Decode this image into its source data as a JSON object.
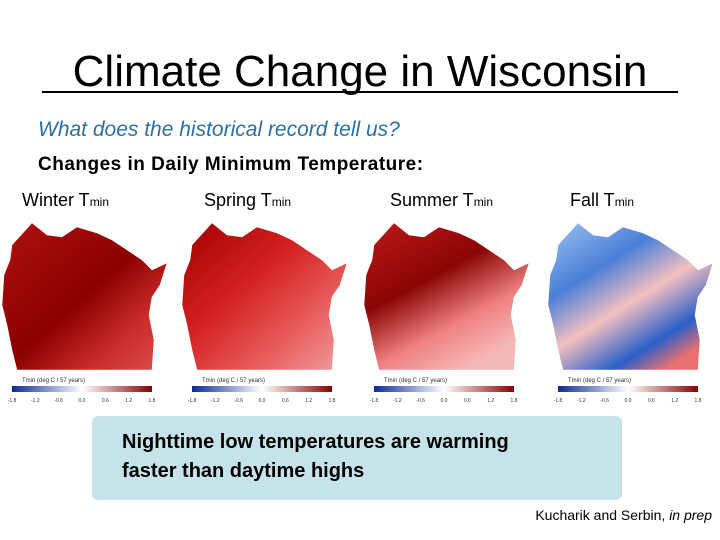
{
  "title": "Climate Change in Wisconsin",
  "subtitle": "What does the historical record tell us?",
  "heading": "Changes in Daily Minimum Temperature:",
  "maps": [
    {
      "season": "Winter T",
      "sub": "min",
      "legend_title": "Tmin (deg C / 57 years)",
      "legend_ticks": [
        "-1.8",
        "-1.2",
        "-0.6",
        "0.0",
        "0.6",
        "1.2",
        "1.8"
      ]
    },
    {
      "season": "Spring T",
      "sub": "min",
      "legend_title": "Tmin (deg C / 57 years)",
      "legend_ticks": [
        "-1.8",
        "-1.2",
        "-0.6",
        "0.0",
        "0.6",
        "1.2",
        "1.8"
      ]
    },
    {
      "season": "Summer T",
      "sub": "min",
      "legend_title": "Tmin (deg C / 57 years)",
      "legend_ticks": [
        "-1.8",
        "-1.2",
        "-0.6",
        "0.0",
        "0.6",
        "1.2",
        "1.8"
      ]
    },
    {
      "season": "Fall T",
      "sub": "min",
      "legend_title": "Tmin (deg C / 57 years)",
      "legend_ticks": [
        "-1.8",
        "-1.2",
        "-0.6",
        "0.0",
        "0.6",
        "1.2",
        "1.8"
      ]
    }
  ],
  "callout": [
    "Nighttime low temperatures are warming",
    "faster than daytime highs"
  ],
  "citation": {
    "authors": "Kucharik and Serbin, ",
    "note": "in prep"
  }
}
